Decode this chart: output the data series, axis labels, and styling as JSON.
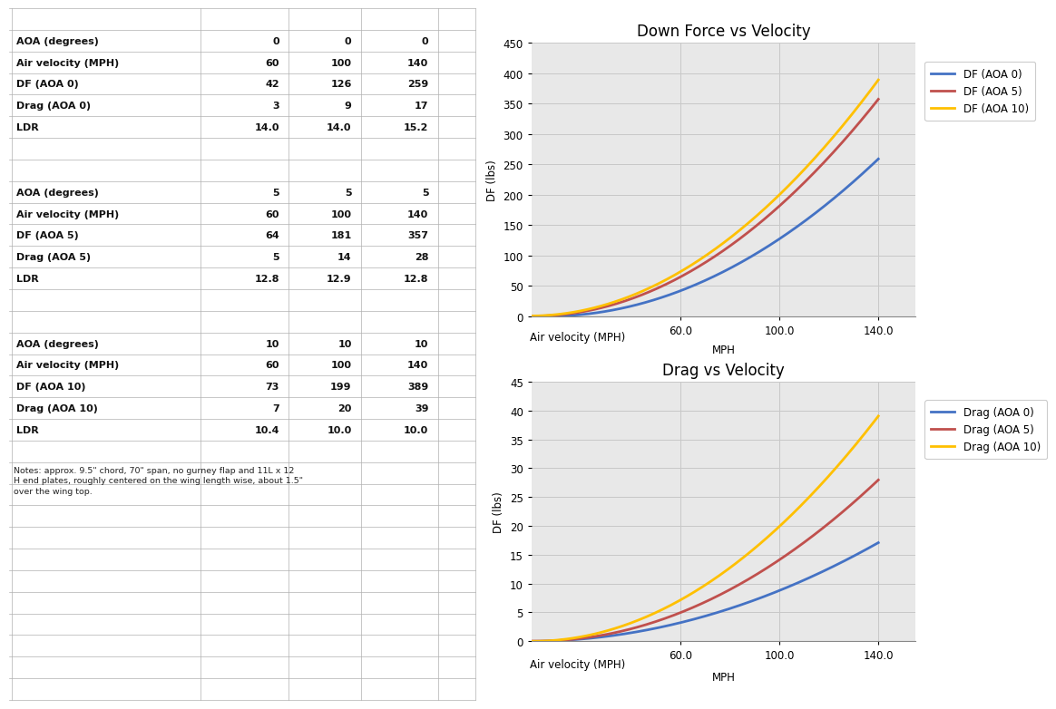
{
  "velocity": [
    0,
    60,
    100,
    140
  ],
  "df_aoa0": [
    0,
    42,
    126,
    259
  ],
  "df_aoa5": [
    0,
    64,
    181,
    357
  ],
  "df_aoa10": [
    0,
    73,
    199,
    389
  ],
  "drag_aoa0": [
    0,
    3,
    9,
    17
  ],
  "drag_aoa5": [
    0,
    5,
    14,
    28
  ],
  "drag_aoa10": [
    0,
    7,
    20,
    39
  ],
  "color_aoa0": "#4472C4",
  "color_aoa5": "#C0504D",
  "color_aoa10": "#FFC000",
  "df_title": "Down Force vs Velocity",
  "drag_title": "Drag vs Velocity",
  "xlabel": "Air velocity (MPH)",
  "xlabel2": "MPH",
  "ylabel": "DF (lbs)",
  "df_ylim": [
    0,
    450
  ],
  "df_yticks": [
    0,
    50,
    100,
    150,
    200,
    250,
    300,
    350,
    400,
    450
  ],
  "drag_ylim": [
    0,
    45
  ],
  "drag_yticks": [
    0,
    5,
    10,
    15,
    20,
    25,
    30,
    35,
    40,
    45
  ],
  "xticks": [
    60.0,
    100.0,
    140.0
  ],
  "legend_df": [
    "DF (AOA 0)",
    "DF (AOA 5)",
    "DF (AOA 10)"
  ],
  "legend_drag": [
    "Drag (AOA 0)",
    "Drag (AOA 5)",
    "Drag (AOA 10)"
  ],
  "notes": "Notes: approx. 9.5\" chord, 70\" span, no gurney flap and 11L x 12\nH end plates, roughly centered on the wing length wise, about 1.5\"\nover the wing top.",
  "bg_color": "#FFFFFF",
  "grid_color": "#C8C8C8",
  "plot_bg": "#E8E8E8",
  "line_width": 2.0,
  "font_size_title": 12,
  "font_size_label": 8.5,
  "font_size_tick": 8.5,
  "font_size_legend": 8.5,
  "font_size_table": 8.0,
  "table_rows": [
    [
      "",
      "",
      "",
      ""
    ],
    [
      "AOA (degrees)",
      "0",
      "0",
      "0"
    ],
    [
      "Air velocity (MPH)",
      "60",
      "100",
      "140"
    ],
    [
      "DF (AOA 0)",
      "42",
      "126",
      "259"
    ],
    [
      "Drag (AOA 0)",
      "3",
      "9",
      "17"
    ],
    [
      "LDR",
      "14.0",
      "14.0",
      "15.2"
    ],
    [
      "",
      "",
      "",
      ""
    ],
    [
      "",
      "",
      "",
      ""
    ],
    [
      "AOA (degrees)",
      "5",
      "5",
      "5"
    ],
    [
      "Air velocity (MPH)",
      "60",
      "100",
      "140"
    ],
    [
      "DF (AOA 5)",
      "64",
      "181",
      "357"
    ],
    [
      "Drag (AOA 5)",
      "5",
      "14",
      "28"
    ],
    [
      "LDR",
      "12.8",
      "12.9",
      "12.8"
    ],
    [
      "",
      "",
      "",
      ""
    ],
    [
      "",
      "",
      "",
      ""
    ],
    [
      "AOA (degrees)",
      "10",
      "10",
      "10"
    ],
    [
      "Air velocity (MPH)",
      "60",
      "100",
      "140"
    ],
    [
      "DF (AOA 10)",
      "73",
      "199",
      "389"
    ],
    [
      "Drag (AOA 10)",
      "7",
      "20",
      "39"
    ],
    [
      "LDR",
      "10.4",
      "10.0",
      "10.0"
    ],
    [
      "",
      "",
      "",
      ""
    ],
    [
      "notes",
      "",
      "",
      ""
    ],
    [
      "",
      "",
      "",
      ""
    ],
    [
      "",
      "",
      "",
      ""
    ],
    [
      "",
      "",
      "",
      ""
    ],
    [
      "",
      "",
      "",
      ""
    ],
    [
      "",
      "",
      "",
      ""
    ],
    [
      "",
      "",
      "",
      ""
    ],
    [
      "",
      "",
      "",
      ""
    ],
    [
      "",
      "",
      "",
      ""
    ],
    [
      "",
      "",
      "",
      ""
    ],
    [
      "",
      "",
      "",
      ""
    ]
  ],
  "bold_rows": [
    1,
    2,
    3,
    4,
    5,
    8,
    9,
    10,
    11,
    12,
    15,
    16,
    17,
    18,
    19
  ]
}
